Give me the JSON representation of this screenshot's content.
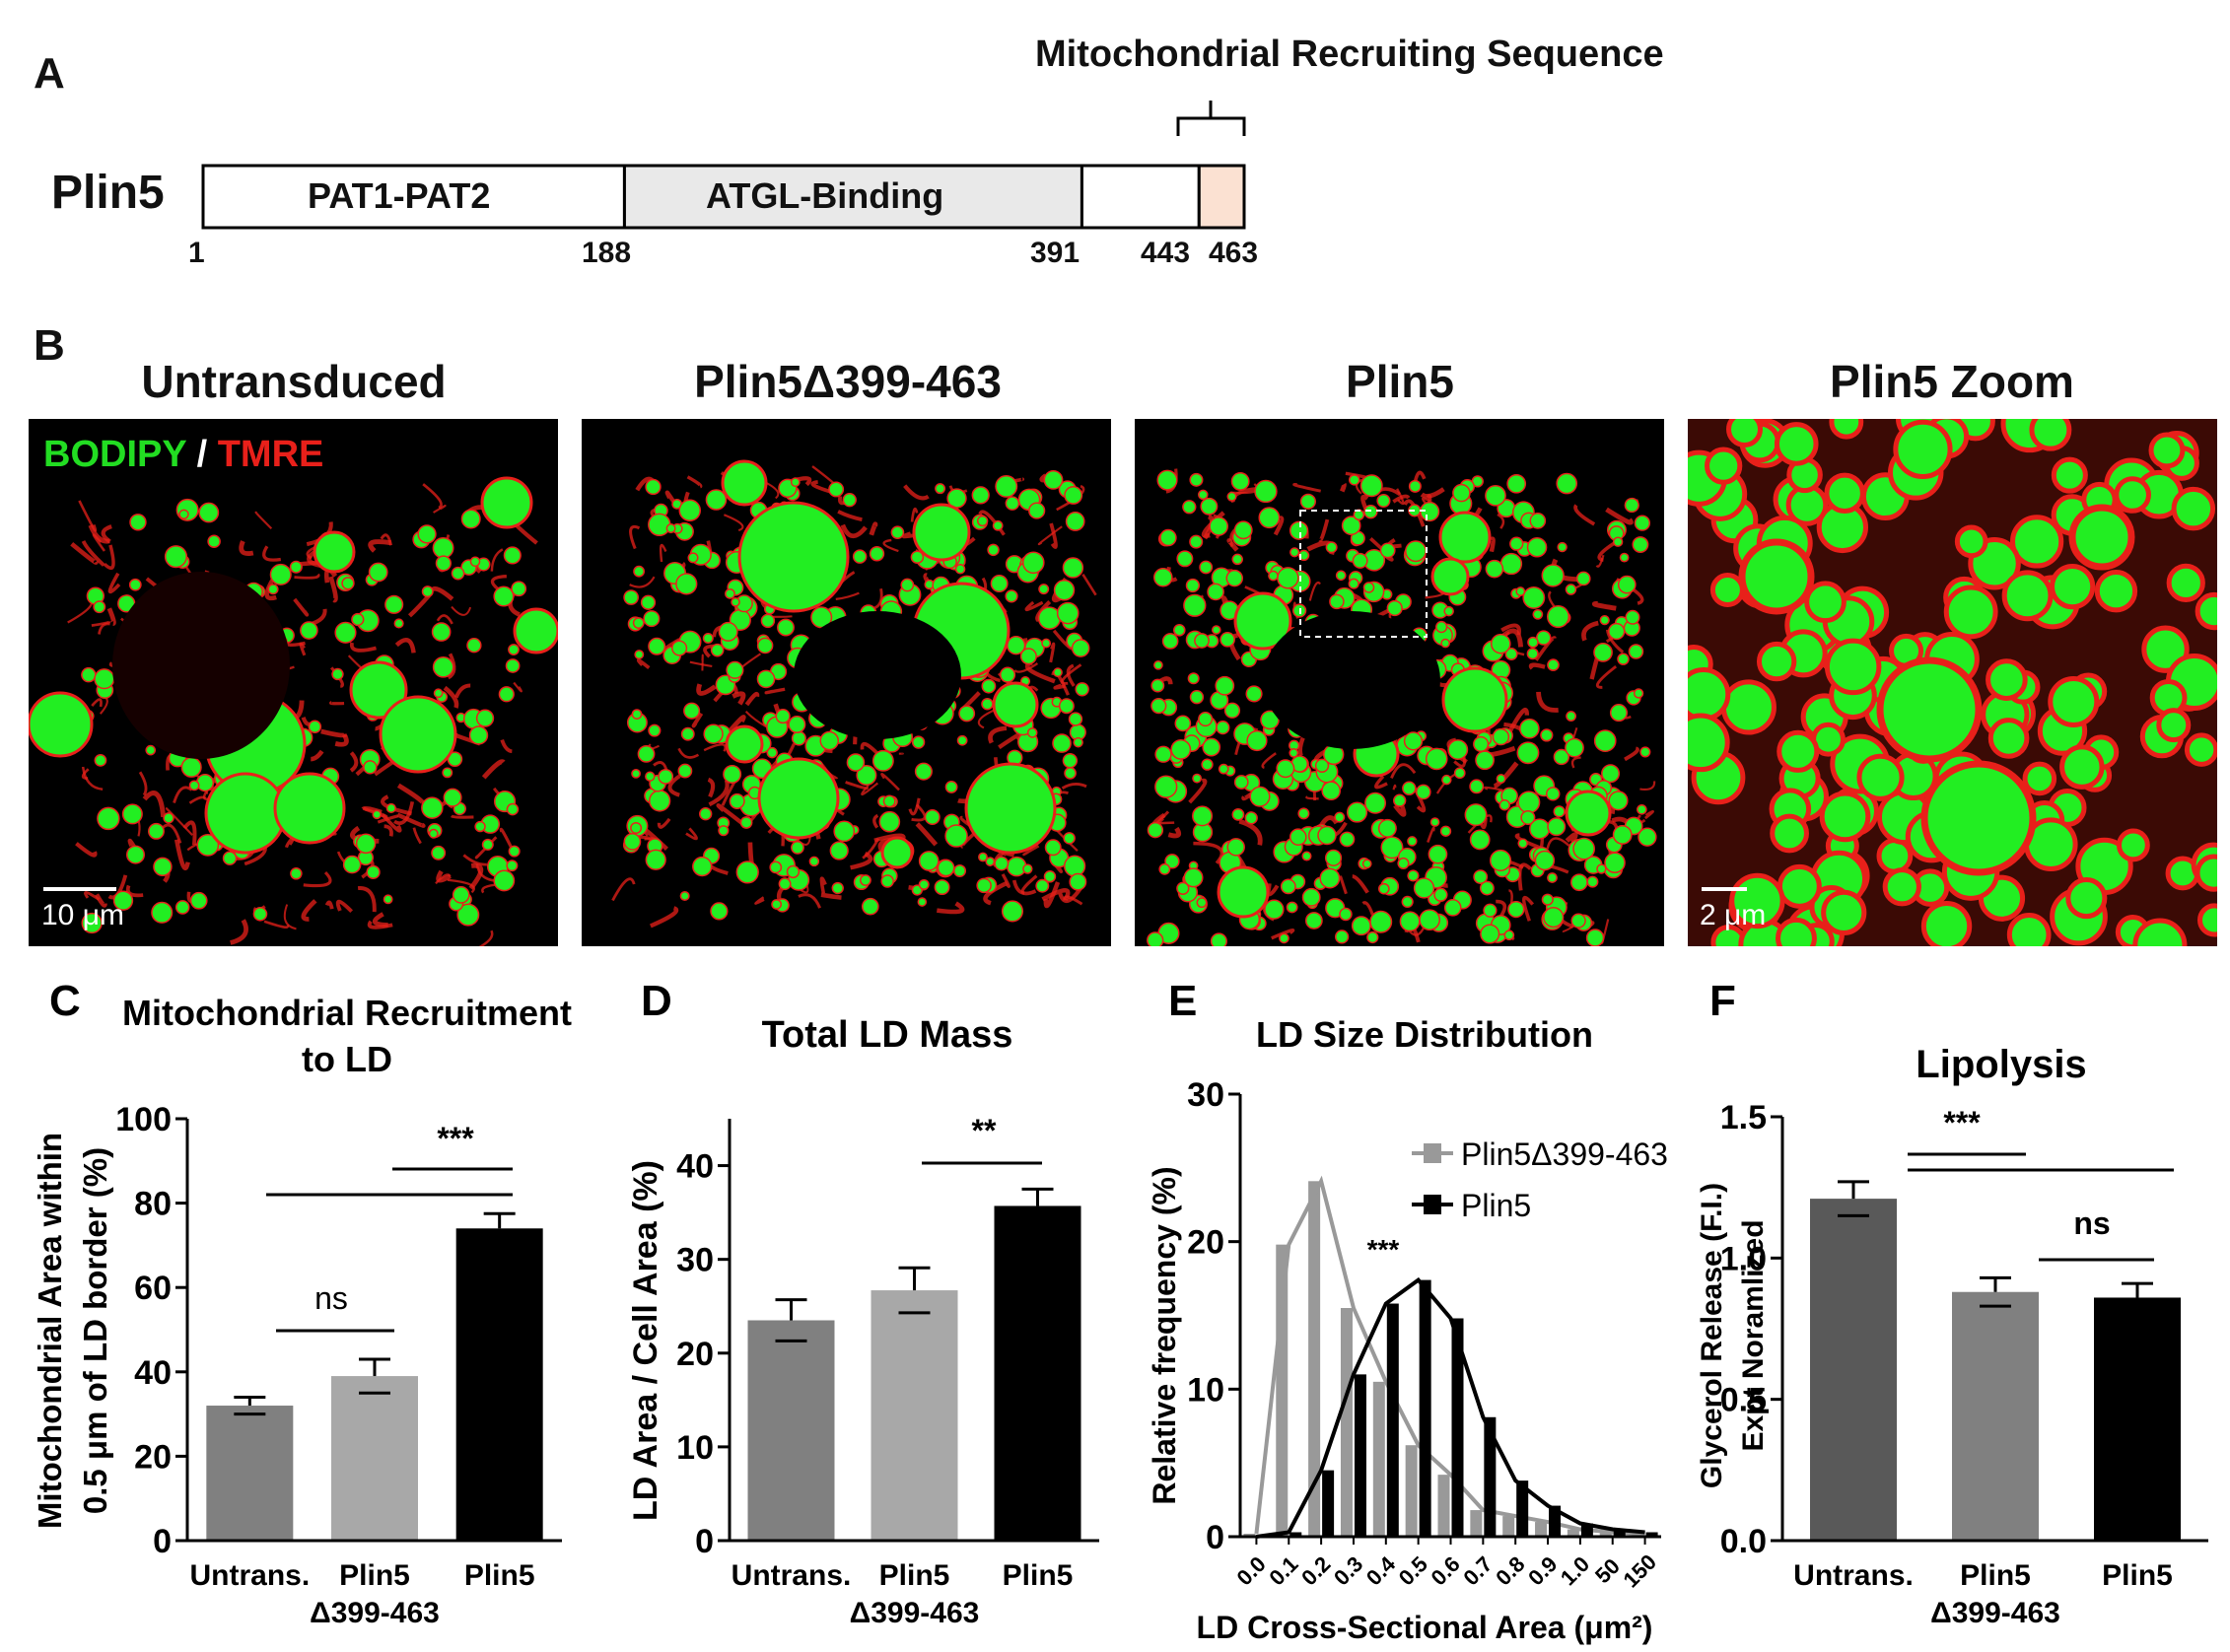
{
  "panelA": {
    "letter": "A",
    "protein": "Plin5",
    "header": "Mitochondrial Recruiting Sequence",
    "domains": [
      {
        "label": "PAT1-PAT2",
        "start": 1,
        "end": 188,
        "color": "#ffffff"
      },
      {
        "label": "ATGL-Binding",
        "start": 188,
        "end": 391,
        "color": "#e9e9e9"
      },
      {
        "label": "",
        "start": 391,
        "end": 443,
        "color": "#ffffff"
      },
      {
        "label": "",
        "start": 443,
        "end": 463,
        "color": "#fbe1d2"
      }
    ],
    "positions": [
      "1",
      "188",
      "391",
      "443",
      "463"
    ]
  },
  "panelB": {
    "letter": "B",
    "titles": [
      "Untransduced",
      "Plin5Δ399-463",
      "Plin5",
      "Plin5 Zoom"
    ],
    "legend_green": "BODIPY",
    "legend_sep": " / ",
    "legend_red": "TMRE",
    "scale1": "10 μm",
    "scale2": "2 μm",
    "colors": {
      "green": "#22ee22",
      "red": "#e8201a"
    }
  },
  "chart_data": [
    {
      "panel": "C",
      "type": "bar",
      "title": "Mitochondrial Recruitment to LD",
      "ylabel": "Mitochondrial Area within 0.5 μm of LD border (%)",
      "categories": [
        "Untrans.",
        "Plin5 Δ399-463",
        "Plin5"
      ],
      "values": [
        32,
        39,
        74
      ],
      "errors": [
        2,
        4,
        3.5
      ],
      "colors": [
        "#808080",
        "#a8a8a8",
        "#000000"
      ],
      "ylim": [
        0,
        100
      ],
      "yticks": [
        "0",
        "20",
        "40",
        "60",
        "80",
        "100"
      ],
      "annotations": [
        "ns",
        "***"
      ]
    },
    {
      "panel": "D",
      "type": "bar",
      "title": "Total LD Mass",
      "ylabel": "LD Area / Cell Area (%)",
      "categories": [
        "Untrans.",
        "Plin5 Δ399-463",
        "Plin5"
      ],
      "values": [
        23.5,
        26.7,
        35.7
      ],
      "errors": [
        2.2,
        2.4,
        1.8
      ],
      "colors": [
        "#808080",
        "#a8a8a8",
        "#000000"
      ],
      "ylim": [
        0,
        45
      ],
      "yticks": [
        "0",
        "10",
        "20",
        "30",
        "40"
      ],
      "annotations": [
        "**"
      ]
    },
    {
      "panel": "E",
      "type": "bar",
      "title": "LD Size Distribution",
      "xlabel": "LD Cross-Sectional Area (μm²)",
      "ylabel": "Relative frequency (%)",
      "categories": [
        "0.0",
        "0.1",
        "0.2",
        "0.3",
        "0.4",
        "0.5",
        "0.6",
        "0.7",
        "0.8",
        "0.9",
        "1.0",
        "50",
        "150"
      ],
      "series": [
        {
          "name": "Plin5Δ399-463",
          "color": "#999999",
          "values": [
            0.2,
            19.8,
            24.1,
            15.5,
            10.5,
            6.2,
            4.2,
            1.8,
            1.4,
            1.0,
            0.5,
            0.3,
            0.2
          ]
        },
        {
          "name": "Plin5",
          "color": "#000000",
          "values": [
            0,
            0.3,
            4.5,
            11.0,
            15.8,
            17.4,
            14.8,
            8.1,
            3.8,
            2.1,
            0.9,
            0.5,
            0.3
          ]
        }
      ],
      "ylim": [
        0,
        30
      ],
      "yticks": [
        "0",
        "10",
        "20",
        "30"
      ],
      "annotations": [
        "***"
      ]
    },
    {
      "panel": "F",
      "type": "bar",
      "title": "Lipolysis",
      "ylabel": "Glycerol Release (F.I.) Expt Noramlized",
      "categories": [
        "Untrans.",
        "Plin5 Δ399-463",
        "Plin5"
      ],
      "values": [
        1.21,
        0.88,
        0.86
      ],
      "errors": [
        0.06,
        0.05,
        0.05
      ],
      "colors": [
        "#595959",
        "#808080",
        "#000000"
      ],
      "ylim": [
        0,
        1.5
      ],
      "yticks": [
        "0.0",
        "0.5",
        "1.0",
        "1.5"
      ],
      "annotations": [
        "***",
        "ns"
      ]
    }
  ]
}
